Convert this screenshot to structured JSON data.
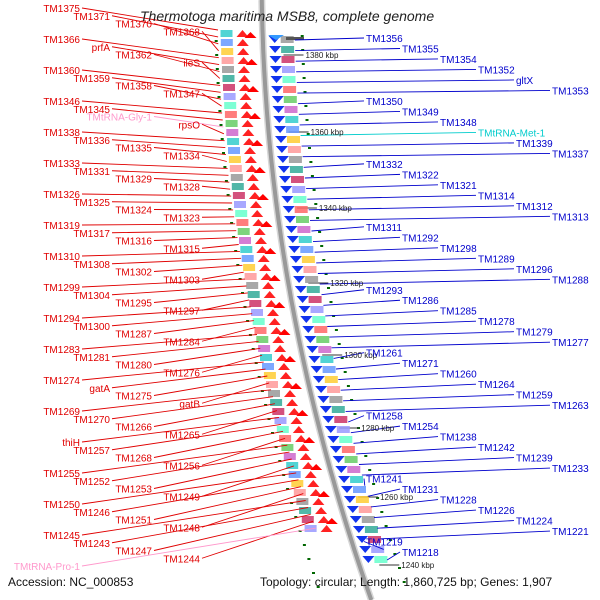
{
  "title": "Thermotoga maritima MSB8, complete genome",
  "footer": {
    "accession": "Accession: NC_000853",
    "summary": "Topology: circular; Length: 1,860,725 bp; Genes: 1,907"
  },
  "colors": {
    "forward_label": "#e00000",
    "reverse_label": "#0000cc",
    "trna_label": "#ff99cc",
    "rrna_label": "#00cccc",
    "backbone": "#999999",
    "tick": "#006600"
  },
  "scale_ticks": [
    "1380 kbp",
    "1360 kbp",
    "1340 kbp",
    "1320 kbp",
    "1300 kbp",
    "1280 kbp",
    "1260 kbp",
    "1240 kbp"
  ],
  "left_labels": [
    "TM1375",
    "TM1371",
    "TM1370",
    "TM1368",
    "TM1366",
    "prfA",
    "TM1362",
    "ileS",
    "TM1360",
    "TM1359",
    "TM1358",
    "TM1347",
    "TM1346",
    "TM1345",
    "TMtRNA-Gly-1",
    "rpsO",
    "TM1338",
    "TM1336",
    "TM1335",
    "TM1334",
    "TM1333",
    "TM1331",
    "TM1329",
    "TM1328",
    "TM1326",
    "TM1325",
    "TM1324",
    "TM1323",
    "TM1319",
    "TM1317",
    "TM1316",
    "TM1315",
    "TM1310",
    "TM1308",
    "TM1302",
    "TM1303",
    "TM1299",
    "TM1304",
    "TM1295",
    "TM1297",
    "TM1294",
    "TM1300",
    "TM1287",
    "TM1284",
    "TM1283",
    "TM1281",
    "TM1280",
    "TM1276",
    "TM1274",
    "gatA",
    "TM1275",
    "gatB",
    "TM1269",
    "TM1270",
    "TM1266",
    "TM1265",
    "thiH",
    "TM1257",
    "TM1268",
    "TM1256",
    "TM1255",
    "TM1252",
    "TM1253",
    "TM1249",
    "TM1250",
    "TM1246",
    "TM1251",
    "TM1248",
    "TM1245",
    "TM1243",
    "TM1247",
    "TM1244",
    "TMtRNA-Pro-1"
  ],
  "right_labels": [
    "TM1356",
    "TM1355",
    "TM1354",
    "TM1352",
    "gltX",
    "TM1353",
    "TM1350",
    "TM1349",
    "TM1348",
    "TMtRNA-Met-1",
    "TM1339",
    "TM1337",
    "TM1332",
    "TM1322",
    "TM1321",
    "TM1314",
    "TM1312",
    "TM1313",
    "TM1311",
    "TM1292",
    "TM1298",
    "TM1289",
    "TM1296",
    "TM1288",
    "TM1293",
    "TM1286",
    "TM1285",
    "TM1278",
    "TM1279",
    "TM1277",
    "TM1261",
    "TM1271",
    "TM1260",
    "TM1264",
    "TM1259",
    "TM1263",
    "TM1258",
    "TM1254",
    "TM1238",
    "TM1242",
    "TM1239",
    "TM1233",
    "TM1241",
    "TM1231",
    "TM1228",
    "TM1226",
    "TM1224",
    "TM1221",
    "TM1219",
    "TM1218"
  ]
}
